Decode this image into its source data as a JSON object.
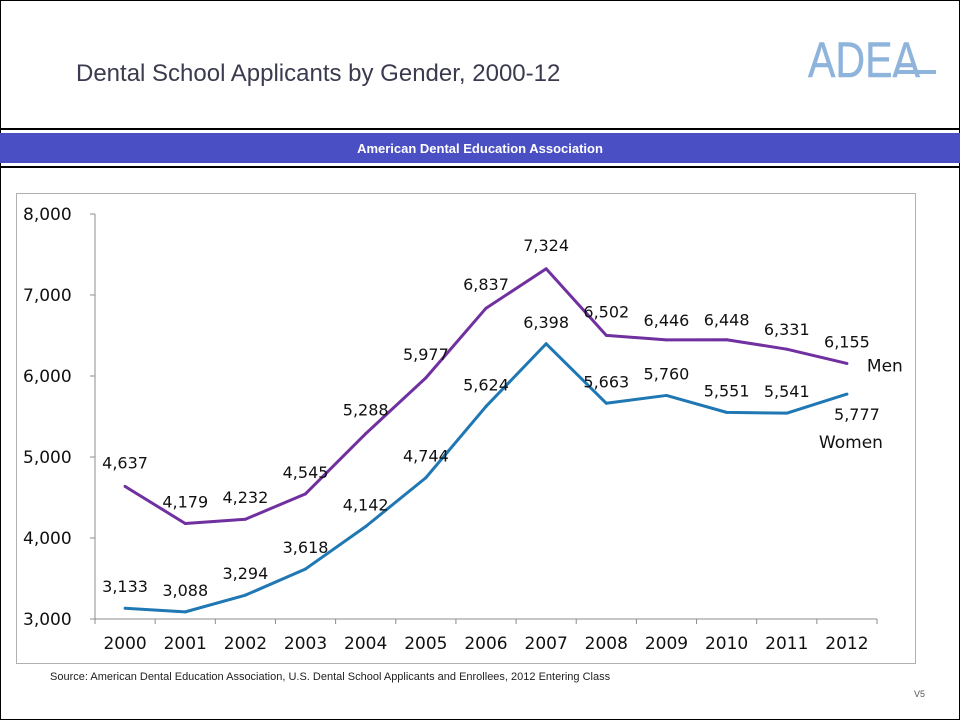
{
  "slide": {
    "title": "Dental School Applicants by Gender, 2000-12",
    "logo_text": "ADEA",
    "banner": "American Dental Education Association",
    "source": "Source: American Dental Education Association, U.S. Dental School Applicants and Enrollees, 2012 Entering Class",
    "slide_number": "V5",
    "colors": {
      "banner": "#4a4fc4",
      "logo": "#8fb4dc",
      "men": "#7030a0",
      "women": "#1f77b4"
    }
  },
  "chart_data": {
    "type": "line",
    "title": "",
    "xlabel": "",
    "ylabel": "",
    "categories": [
      "2000",
      "2001",
      "2002",
      "2003",
      "2004",
      "2005",
      "2006",
      "2007",
      "2008",
      "2009",
      "2010",
      "2011",
      "2012"
    ],
    "ylim": [
      3000,
      8000
    ],
    "yticks": [
      3000,
      4000,
      5000,
      6000,
      7000,
      8000
    ],
    "ytick_labels": [
      "3,000",
      "4,000",
      "5,000",
      "6,000",
      "7,000",
      "8,000"
    ],
    "grid": false,
    "legend": "end-of-line labels",
    "series": [
      {
        "name": "Men",
        "color": "#7030a0",
        "values": [
          4637,
          4179,
          4232,
          4545,
          5288,
          5977,
          6837,
          7324,
          6502,
          6446,
          6448,
          6331,
          6155
        ],
        "labels": [
          "4,637",
          "4,179",
          "4,232",
          "4,545",
          "5,288",
          "5,977",
          "6,837",
          "7,324",
          "6,502",
          "6,446",
          "6,448",
          "6,331",
          "6,155"
        ]
      },
      {
        "name": "Women",
        "color": "#1f77b4",
        "values": [
          3133,
          3088,
          3294,
          3618,
          4142,
          4744,
          5624,
          6398,
          5663,
          5760,
          5551,
          5541,
          5777
        ],
        "labels": [
          "3,133",
          "3,088",
          "3,294",
          "3,618",
          "4,142",
          "4,744",
          "5,624",
          "6,398",
          "5,663",
          "5,760",
          "5,551",
          "5,541",
          "5,777"
        ]
      }
    ]
  }
}
